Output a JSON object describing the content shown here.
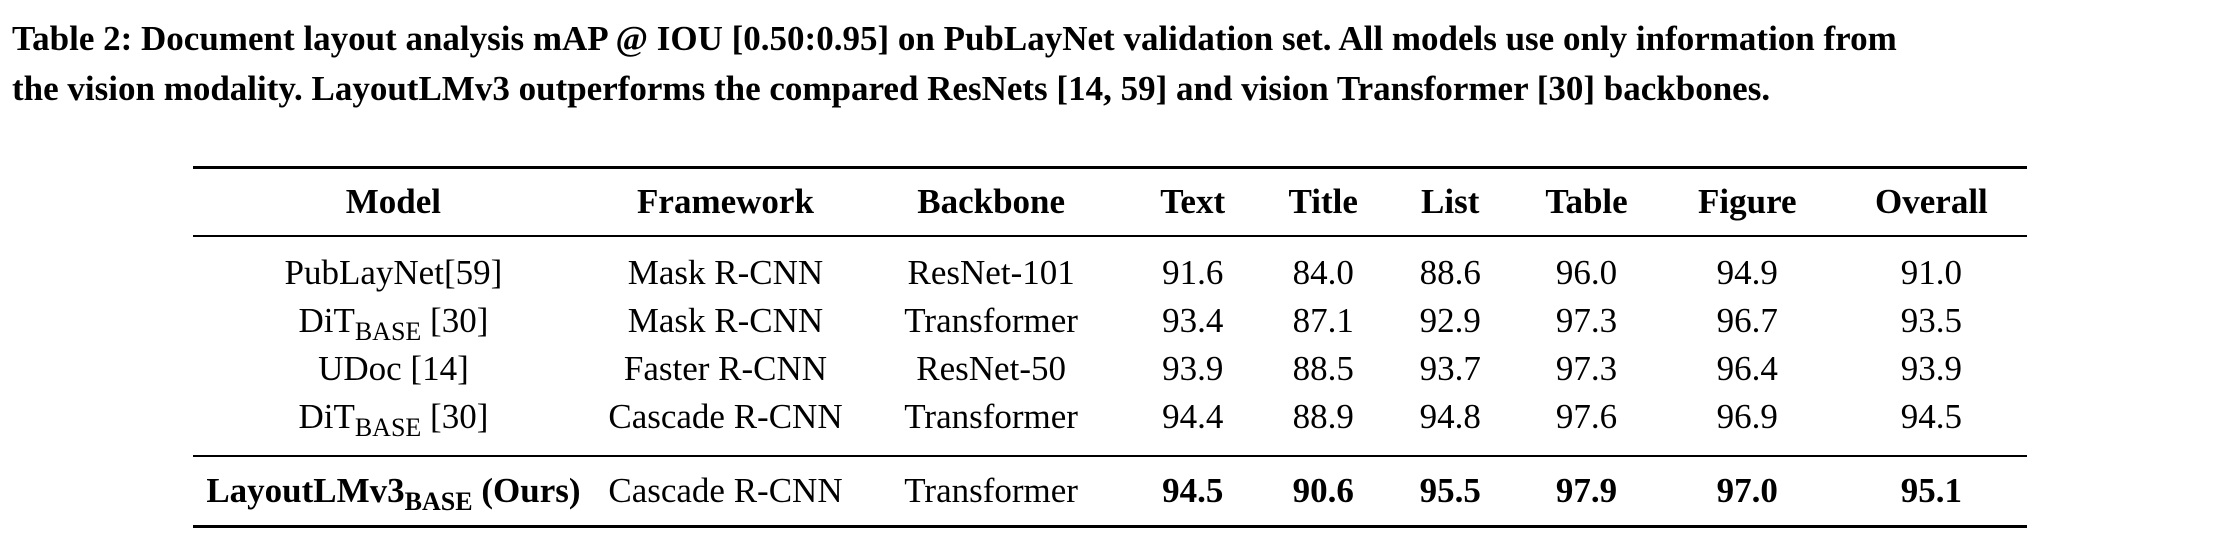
{
  "caption": {
    "line1": "Table 2: Document layout analysis mAP @ IOU [0.50:0.95] on PubLayNet validation set. All models use only information from",
    "line2": "the vision modality. LayoutLMv3 outperforms the compared ResNets [14, 59] and vision Transformer [30] backbones."
  },
  "table": {
    "headers": [
      "Model",
      "Framework",
      "Backbone",
      "Text",
      "Title",
      "List",
      "Table",
      "Figure",
      "Overall"
    ],
    "rows": [
      {
        "model": "PubLayNet[59]",
        "model_sub": "",
        "model_suffix": "",
        "framework": "Mask R-CNN",
        "backbone": "ResNet-101",
        "text": "91.6",
        "title": "84.0",
        "list": "88.6",
        "table": "96.0",
        "figure": "94.9",
        "overall": "91.0"
      },
      {
        "model": "DiT",
        "model_sub": "BASE",
        "model_suffix": " [30]",
        "framework": "Mask R-CNN",
        "backbone": "Transformer",
        "text": "93.4",
        "title": "87.1",
        "list": "92.9",
        "table": "97.3",
        "figure": "96.7",
        "overall": "93.5"
      },
      {
        "model": "UDoc [14]",
        "model_sub": "",
        "model_suffix": "",
        "framework": "Faster R-CNN",
        "backbone": "ResNet-50",
        "text": "93.9",
        "title": "88.5",
        "list": "93.7",
        "table": "97.3",
        "figure": "96.4",
        "overall": "93.9"
      },
      {
        "model": "DiT",
        "model_sub": "BASE",
        "model_suffix": " [30]",
        "framework": "Cascade R-CNN",
        "backbone": "Transformer",
        "text": "94.4",
        "title": "88.9",
        "list": "94.8",
        "table": "97.6",
        "figure": "96.9",
        "overall": "94.5"
      }
    ],
    "ours": {
      "model": "LayoutLMv3",
      "model_sub": "BASE",
      "model_suffix": " (Ours)",
      "framework": "Cascade R-CNN",
      "backbone": "Transformer",
      "text": "94.5",
      "title": "90.6",
      "list": "95.5",
      "table": "97.9",
      "figure": "97.0",
      "overall": "95.1"
    }
  }
}
